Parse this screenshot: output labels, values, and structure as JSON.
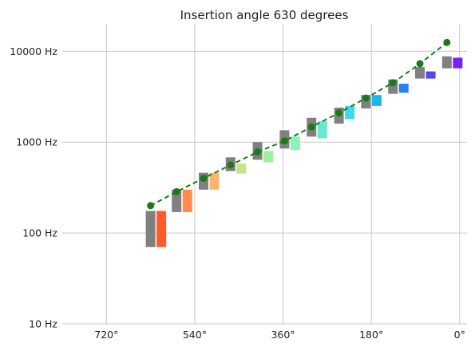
{
  "chart_data": {
    "type": "bar",
    "title": "Insertion angle 630 degrees",
    "xlabel": "",
    "ylabel": "",
    "x_axis": {
      "reversed": true,
      "xlim": [
        810,
        -15
      ],
      "ticks": [
        720,
        540,
        360,
        180,
        0
      ],
      "tick_labels": [
        "720°",
        "540°",
        "360°",
        "180°",
        "0°"
      ]
    },
    "y_axis": {
      "scale": "log",
      "ylim": [
        10,
        20000
      ],
      "ticks": [
        10,
        100,
        1000,
        10000
      ],
      "tick_labels": [
        "10 Hz",
        "100 Hz",
        "1000 Hz",
        "10000 Hz"
      ]
    },
    "grid": true,
    "series": [
      {
        "kind": "bar-range",
        "color": "#808080",
        "x": [
          630,
          577,
          522,
          467,
          412,
          357,
          302,
          246,
          191,
          136,
          81,
          26
        ],
        "low": [
          70,
          170,
          300,
          480,
          640,
          850,
          1150,
          1600,
          2350,
          3400,
          5000,
          6500
        ],
        "high": [
          175,
          300,
          460,
          680,
          1000,
          1350,
          1850,
          2400,
          3300,
          4900,
          6700,
          8800
        ]
      },
      {
        "kind": "bar-range",
        "colors": [
          "#ff5a2a",
          "#ff8c4a",
          "#f7b66a",
          "#cbe388",
          "#9ef09a",
          "#86f5b7",
          "#6ae8d0",
          "#3fd8ee",
          "#1eb4f2",
          "#2b7ff3",
          "#4a48ee",
          "#7a1ff2"
        ],
        "x": [
          608,
          555,
          500,
          445,
          390,
          335,
          280,
          224,
          169,
          114,
          59,
          4
        ],
        "low": [
          70,
          170,
          300,
          450,
          600,
          820,
          1100,
          1800,
          2500,
          3500,
          5000,
          6500
        ],
        "high": [
          175,
          300,
          460,
          580,
          800,
          1150,
          1700,
          2500,
          3300,
          4400,
          6000,
          8500
        ]
      },
      {
        "kind": "line",
        "color": "#1a7a1a",
        "dashed": true,
        "marker": "circle",
        "x": [
          630,
          577,
          522,
          467,
          412,
          357,
          302,
          246,
          191,
          136,
          81,
          26
        ],
        "y": [
          200,
          285,
          400,
          560,
          780,
          1030,
          1470,
          2100,
          3050,
          4500,
          7300,
          12500
        ]
      }
    ]
  }
}
